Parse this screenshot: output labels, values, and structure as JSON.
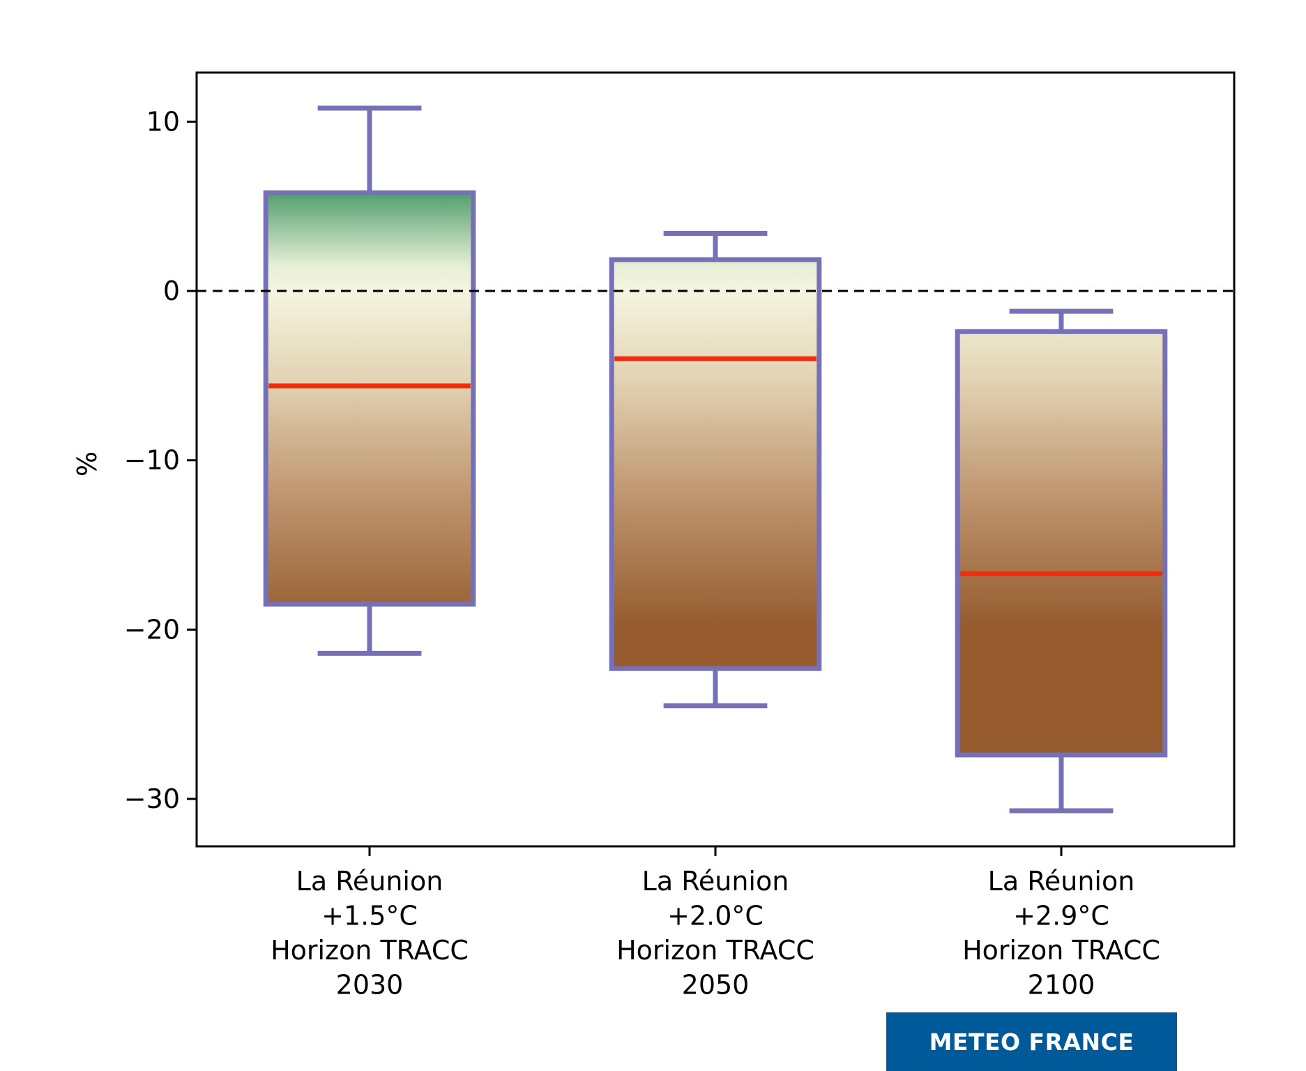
{
  "chart_data": {
    "type": "box",
    "title": "",
    "xlabel": "",
    "ylabel": "%",
    "ylim": [
      -32.8,
      12.9
    ],
    "yticks": [
      10,
      0,
      -10,
      -20,
      -30
    ],
    "ytick_labels": [
      "10",
      "0",
      "−10",
      "−20",
      "−30"
    ],
    "reference_line": {
      "y": 0,
      "style": "dashed",
      "color": "#000000"
    },
    "categories": [
      [
        "La Réunion",
        "+1.5°C",
        "Horizon TRACC",
        "2030"
      ],
      [
        "La Réunion",
        "+2.0°C",
        "Horizon TRACC",
        "2050"
      ],
      [
        "La Réunion",
        "+2.9°C",
        "Horizon TRACC",
        "2100"
      ]
    ],
    "boxes": [
      {
        "whisker_low": -21.4,
        "q1": -18.5,
        "median": -5.6,
        "q3": 5.8,
        "whisker_high": 10.8
      },
      {
        "whisker_low": -24.5,
        "q1": -22.3,
        "median": -4.0,
        "q3": 1.85,
        "whisker_high": 3.4
      },
      {
        "whisker_low": -30.7,
        "q1": -27.4,
        "median": -16.7,
        "q3": -2.4,
        "whisker_high": -1.2
      }
    ],
    "colors": {
      "box_edge": "#7571b4",
      "median": "#f02c0f",
      "gradient_positive": "#4a9a6a",
      "gradient_zero": "#f5f5e0",
      "gradient_negative": "#955a2e"
    },
    "gradient_range": [
      -20,
      6
    ]
  },
  "logo": {
    "text": "METEO FRANCE",
    "color": "#005a9a"
  }
}
